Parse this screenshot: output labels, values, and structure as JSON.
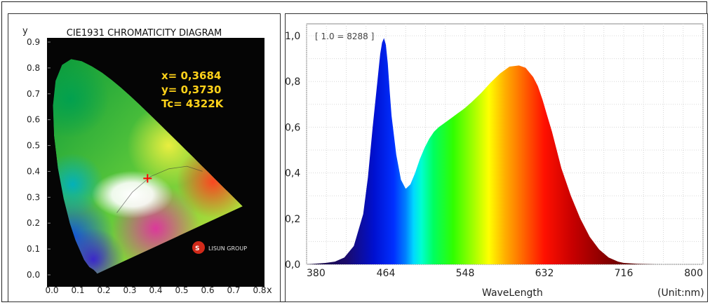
{
  "chart_data": [
    {
      "type": "scatter",
      "title": "CIE1931 CHROMATICITY DIAGRAM",
      "xlabel": "x",
      "ylabel": "y",
      "xlim": [
        0,
        0.8
      ],
      "ylim": [
        0,
        0.9
      ],
      "x_ticks": [
        "0.0",
        "0.1",
        "0.2",
        "0.3",
        "0.4",
        "0.5",
        "0.6",
        "0.7",
        "0.8"
      ],
      "y_ticks": [
        "0.0",
        "0.1",
        "0.2",
        "0.3",
        "0.4",
        "0.5",
        "0.6",
        "0.7",
        "0.8",
        "0.9"
      ],
      "point": {
        "x": 0.3684,
        "y": 0.373
      },
      "annotations": [
        "x= 0,3684",
        "y= 0,3730",
        "Tc= 4322K"
      ],
      "logo_text": "LISUN GROUP",
      "grid": false
    },
    {
      "type": "area",
      "title": "[ 1.0 = 8288 ]",
      "xlabel": "WaveLength",
      "unit_label": "(Unit:nm)",
      "xlim": [
        380,
        800
      ],
      "ylim": [
        0,
        1.0
      ],
      "x_ticks": [
        "380",
        "464",
        "548",
        "632",
        "716",
        "800"
      ],
      "y_ticks": [
        "0,0",
        "0,2",
        "0,4",
        "0,6",
        "0,8",
        "1,0"
      ],
      "grid": true,
      "x": [
        380,
        390,
        400,
        410,
        420,
        430,
        440,
        445,
        450,
        455,
        458,
        460,
        462,
        464,
        466,
        468,
        470,
        475,
        480,
        485,
        490,
        495,
        500,
        505,
        510,
        515,
        520,
        525,
        530,
        535,
        540,
        545,
        548,
        555,
        565,
        575,
        585,
        595,
        605,
        612,
        620,
        625,
        630,
        635,
        640,
        645,
        650,
        660,
        670,
        680,
        690,
        700,
        710,
        716,
        730,
        750,
        770,
        800
      ],
      "y": [
        0.0,
        0.003,
        0.006,
        0.012,
        0.03,
        0.08,
        0.22,
        0.38,
        0.6,
        0.8,
        0.92,
        0.97,
        0.99,
        0.96,
        0.88,
        0.76,
        0.65,
        0.48,
        0.37,
        0.33,
        0.35,
        0.4,
        0.46,
        0.51,
        0.55,
        0.58,
        0.6,
        0.615,
        0.63,
        0.645,
        0.66,
        0.675,
        0.685,
        0.71,
        0.75,
        0.795,
        0.835,
        0.865,
        0.87,
        0.86,
        0.82,
        0.78,
        0.72,
        0.65,
        0.58,
        0.5,
        0.42,
        0.3,
        0.2,
        0.12,
        0.065,
        0.03,
        0.012,
        0.006,
        0.002,
        0.0,
        0.0,
        0.0
      ]
    }
  ]
}
